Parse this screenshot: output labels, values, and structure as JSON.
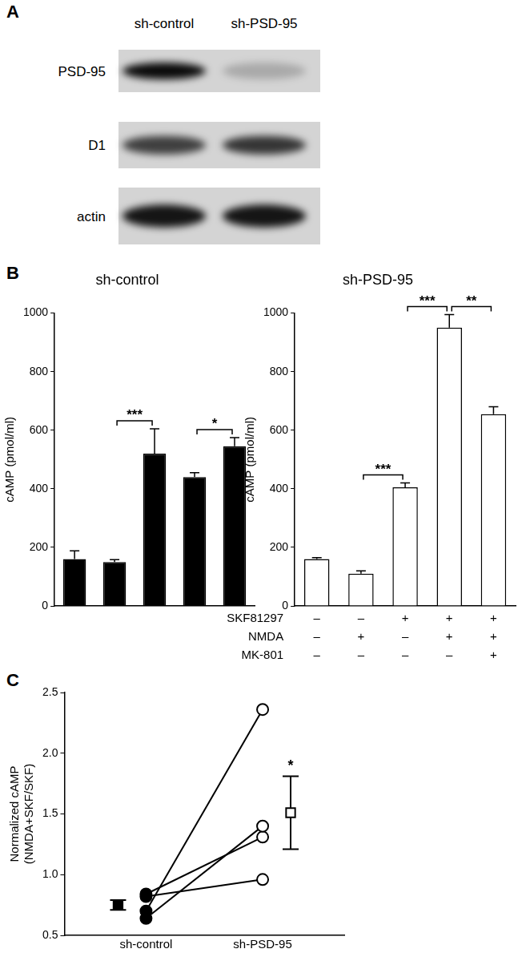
{
  "panel_labels": [
    "A",
    "B",
    "C"
  ],
  "blot": {
    "columns": [
      "sh-control",
      "sh-PSD-95"
    ],
    "rows": [
      "PSD-95",
      "D1",
      "actin"
    ],
    "band_intensity": [
      [
        0.95,
        0.2
      ],
      [
        0.7,
        0.75
      ],
      [
        0.9,
        0.9
      ]
    ]
  },
  "chart_data": [
    {
      "type": "bar",
      "title": "sh-control",
      "y_label": "cAMP (pmol/ml)",
      "categories": [
        null,
        null,
        null,
        null,
        null
      ],
      "values": [
        160,
        150,
        520,
        440,
        545
      ],
      "errors": [
        28,
        8,
        85,
        15,
        30
      ],
      "color": "#000000",
      "ylim": [
        0,
        1000
      ],
      "yticks": [
        0,
        200,
        400,
        600,
        800,
        1000
      ],
      "grid": false,
      "annotations": [
        {
          "from": 1,
          "to": 2,
          "label": "***"
        },
        {
          "from": 3,
          "to": 4,
          "label": "*"
        }
      ]
    },
    {
      "type": "bar",
      "title": "sh-PSD-95",
      "y_label": "cAMP (pmol/ml)",
      "category_rows": [
        "SKF81297",
        "NMDA",
        "MK-801"
      ],
      "categories": [
        [
          "–",
          "–",
          "–"
        ],
        [
          "–",
          "+",
          "–"
        ],
        [
          "+",
          "–",
          "–"
        ],
        [
          "+",
          "+",
          "–"
        ],
        [
          "+",
          "+",
          "+"
        ]
      ],
      "values": [
        160,
        110,
        405,
        950,
        655
      ],
      "errors": [
        5,
        10,
        15,
        45,
        25
      ],
      "color": "#ffffff",
      "ylim": [
        0,
        1000
      ],
      "yticks": [
        0,
        200,
        400,
        600,
        800,
        1000
      ],
      "grid": false,
      "annotations": [
        {
          "from": 1,
          "to": 2,
          "label": "***"
        },
        {
          "from": 2,
          "to": 3,
          "label": "***"
        },
        {
          "from": 3,
          "to": 4,
          "label": "**"
        }
      ]
    },
    {
      "type": "scatter",
      "y_label": [
        "Normalized cAMP",
        "(NMDA+SKF/SKF)"
      ],
      "categories": [
        "sh-control",
        "sh-PSD-95"
      ],
      "pairs": [
        [
          0.7,
          2.36
        ],
        [
          0.64,
          1.4
        ],
        [
          0.84,
          1.31
        ],
        [
          0.82,
          0.96
        ]
      ],
      "means": [
        0.75,
        1.51
      ],
      "errors": [
        0.04,
        0.3
      ],
      "colors": [
        "#000000",
        "#ffffff"
      ],
      "marker": "circle",
      "ylim": [
        0.5,
        2.5
      ],
      "yticks": [
        0.5,
        {
          "value": 1,
          "label": "1.0"
        },
        1.5,
        {
          "value": 2,
          "label": "2.0"
        },
        2.5
      ],
      "grid": false,
      "annotations": [
        {
          "category": 1,
          "label": "*"
        }
      ]
    }
  ]
}
